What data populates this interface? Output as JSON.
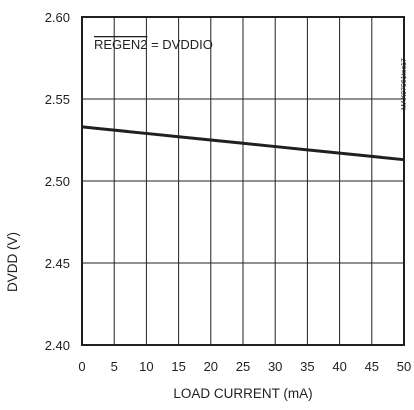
{
  "chart_data": {
    "type": "line",
    "title": "",
    "xlabel": "LOAD CURRENT (mA)",
    "ylabel": "DVDD (V)",
    "xlim": [
      0,
      50
    ],
    "ylim": [
      2.4,
      2.6
    ],
    "x_ticks": [
      0,
      5,
      10,
      15,
      20,
      25,
      30,
      35,
      40,
      45,
      50
    ],
    "y_ticks": [
      2.4,
      2.45,
      2.5,
      2.55,
      2.6
    ],
    "x_tick_labels": [
      "0",
      "5",
      "10",
      "15",
      "20",
      "25",
      "30",
      "35",
      "40",
      "45",
      "50"
    ],
    "y_tick_labels": [
      "2.40",
      "2.45",
      "2.50",
      "2.55",
      "2.60"
    ],
    "grid": true,
    "annotation": {
      "overlined": "REGEN2",
      "rest": " = DVDDIO"
    },
    "watermark": "MAX07961toc17",
    "series": [
      {
        "x": [
          0,
          5,
          10,
          15,
          20,
          25,
          30,
          35,
          40,
          45,
          50
        ],
        "y": [
          2.533,
          2.531,
          2.529,
          2.527,
          2.525,
          2.523,
          2.521,
          2.519,
          2.517,
          2.515,
          2.513
        ],
        "color": "#231f20"
      }
    ]
  }
}
